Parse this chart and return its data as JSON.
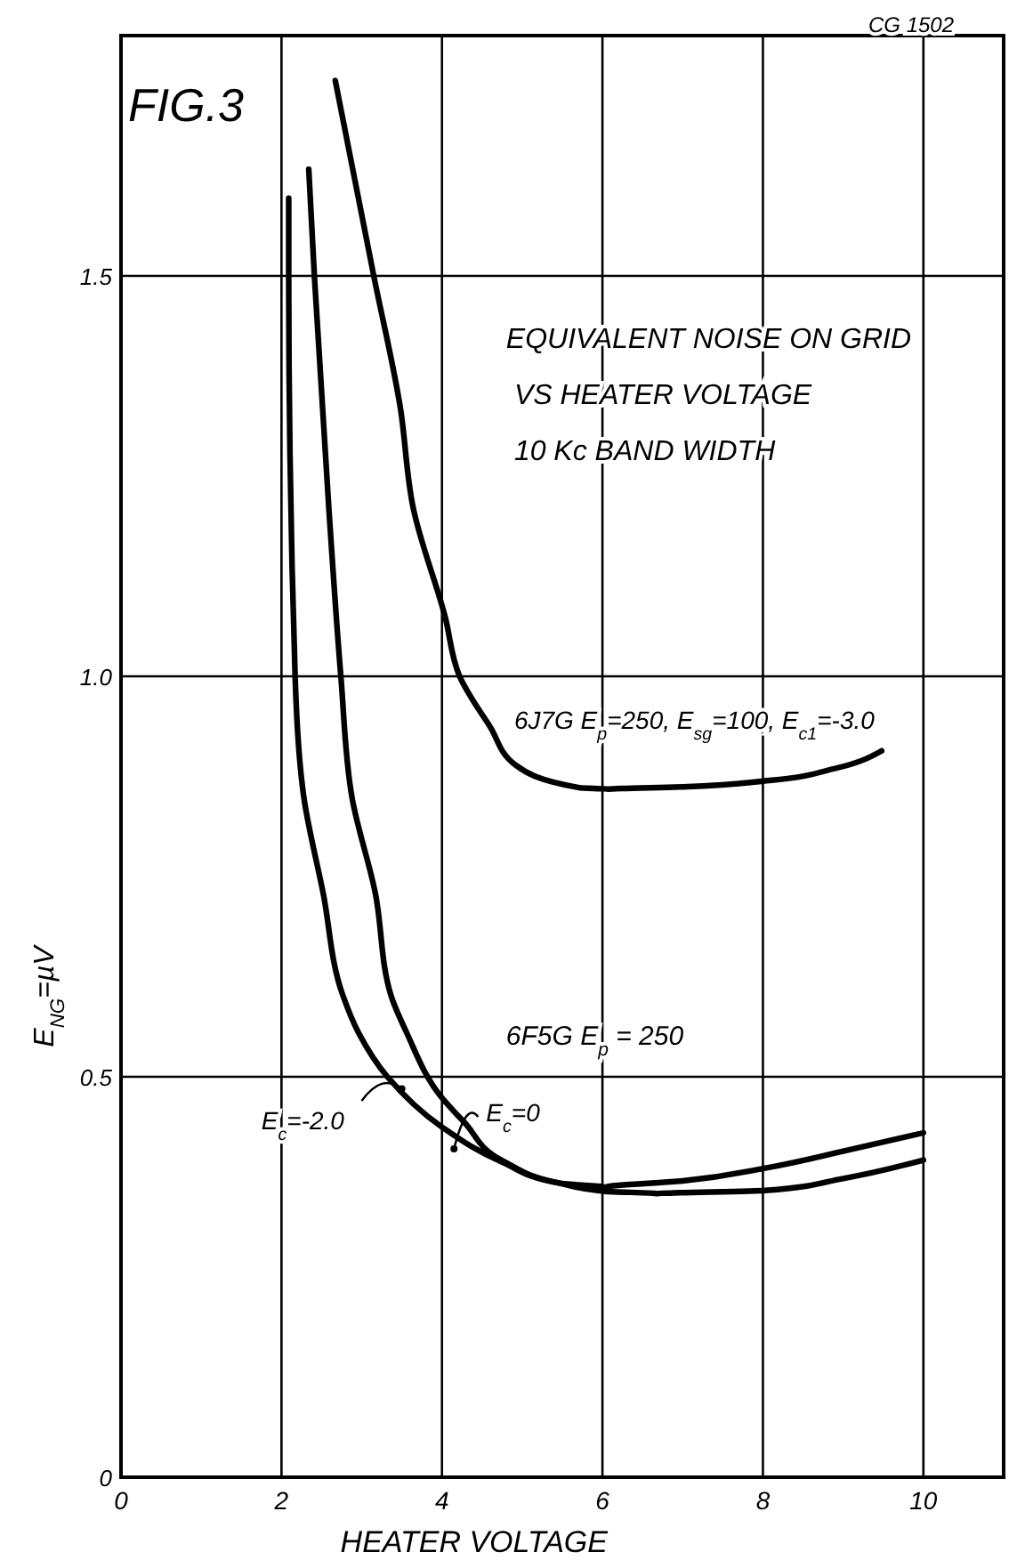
{
  "chart_data": {
    "type": "line",
    "title": "FIG.3",
    "xlabel": "HEATER VOLTAGE",
    "ylabel": "E$_{NG}$=µV",
    "annotations": [
      "EQUIVALENT NOISE ON GRID",
      "VS HEATER VOLTAGE",
      "10 Kc BAND WIDTH",
      "6F5G E$_{p}$ = 250",
      "CG 1502"
    ],
    "xlim": [
      0,
      11
    ],
    "ylim": [
      0,
      1.8
    ],
    "xticks": [
      0,
      2,
      4,
      6,
      8,
      10
    ],
    "yticks": [
      0,
      {
        "value": 0.5,
        "label": "0.5"
      },
      {
        "value": 1,
        "label": "1.0"
      },
      1.5
    ],
    "grid": true,
    "marker": "none",
    "line_style": "solid",
    "series": [
      {
        "name": "6J7G E$_{p}$=250, E$_{sg}$=100, E$_{c1}$=-3.0",
        "color": "#000000",
        "x": [
          2.67,
          3.15,
          3.48,
          3.64,
          4.04,
          4.22,
          4.6,
          4.92,
          5.71,
          6.08,
          7,
          8.08,
          8.9,
          9.48
        ],
        "values": [
          1.744,
          1.5,
          1.336,
          1.211,
          1.074,
          1.0,
          0.937,
          0.889,
          0.861,
          0.859,
          0.862,
          0.87,
          0.885,
          0.907
        ]
      },
      {
        "name": "E$_{c}$=-2.0",
        "color": "#000000",
        "x": [
          2.09,
          2.09,
          2.17,
          2.28,
          2.52,
          2.76,
          2.96,
          3.32,
          3.99,
          4.76,
          5.47,
          6.03,
          7,
          8.03,
          9,
          10
        ],
        "values": [
          1.597,
          1.5,
          1.0,
          0.848,
          0.729,
          0.603,
          0.555,
          0.5,
          0.438,
          0.393,
          0.367,
          0.362,
          0.37,
          0.386,
          0.407,
          0.43
        ]
      },
      {
        "name": "E$_{c}$=0",
        "color": "#000000",
        "x": [
          2.34,
          2.41,
          2.59,
          2.74,
          2.88,
          3.17,
          3.36,
          3.56,
          3.99,
          4.28,
          4.76,
          5.47,
          6.03,
          6.68,
          8.03,
          9,
          10
        ],
        "values": [
          1.633,
          1.5,
          1.21,
          1.0,
          0.848,
          0.729,
          0.603,
          0.555,
          0.475,
          0.443,
          0.395,
          0.367,
          0.357,
          0.354,
          0.358,
          0.373,
          0.396
        ]
      }
    ]
  }
}
